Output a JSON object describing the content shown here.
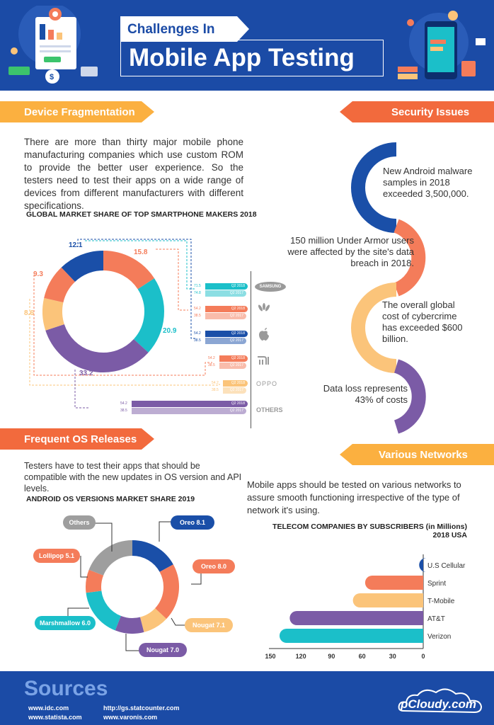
{
  "header": {
    "title_small": "Challenges In",
    "title_large": "Mobile App Testing"
  },
  "device_fragmentation": {
    "heading": "Device Fragmentation",
    "body": "There are more than thirty major mobile phone manufacturing companies which use custom ROM to provide the better user experience. So the testers need to test their apps on a wide range of devices from different manufacturers with different specifications.",
    "chart_title": "GLOBAL MARKET SHARE OF TOP SMARTPHONE MAKERS 2018"
  },
  "security": {
    "heading": "Security Issues",
    "items": [
      "New Android malware samples in 2018 exceeded 3,500,000.",
      "150 million Under Armor users were affected by the site's data breach in 2018.",
      "The overall global cost of cybercrime has exceeded $600 billion.",
      "Data loss represents 43% of costs"
    ]
  },
  "os_releases": {
    "heading": "Frequent OS Releases",
    "body": "Testers have to test their apps that should be compatible with the new updates in OS version and API levels.",
    "chart_title": "ANDROID OS VERSIONS MARKET SHARE 2019"
  },
  "networks": {
    "heading": "Various Networks",
    "body": "Mobile apps should be tested on various networks to assure smooth functioning irrespective of the type of network it's using.",
    "chart_title_line1": "TELECOM COMPANIES BY SUBSCRIBERS (in Millions)",
    "chart_title_line2": "2018 USA"
  },
  "sources": {
    "heading": "Sources",
    "links": [
      "www.idc.com",
      "www.statista.com",
      "http://gs.statcounter.com",
      "www.varonis.com"
    ]
  },
  "brand_logo": "pCloudy.com",
  "chart_data": [
    {
      "type": "pie",
      "title": "GLOBAL MARKET SHARE OF TOP SMARTPHONE MAKERS 2018",
      "donut_labels": [
        {
          "label": "12.1",
          "color": "#1a4fa8"
        },
        {
          "label": "15.8",
          "color": "#f47c5a"
        },
        {
          "label": "20.9",
          "color": "#1bbfc9"
        },
        {
          "label": "33.2",
          "color": "#7b5ba6"
        },
        {
          "label": "8.6",
          "color": "#fbc47a"
        },
        {
          "label": "9.3",
          "color": "#f47c5a"
        }
      ],
      "slices": [
        {
          "value": 15.8,
          "color": "#f47c5a"
        },
        {
          "value": 20.9,
          "color": "#1bbfc9"
        },
        {
          "value": 33.2,
          "color": "#7b5ba6"
        },
        {
          "value": 8.6,
          "color": "#fbc47a"
        },
        {
          "value": 9.3,
          "color": "#f47c5a"
        },
        {
          "value": 12.1,
          "color": "#1a4fa8"
        }
      ],
      "brands": [
        {
          "name": "SAMSUNG",
          "color": "#1bbfc9",
          "v2018": "71.5",
          "v2017": "74.8",
          "l2018": "Q2 2018",
          "l2017": "Q2 2017"
        },
        {
          "name": "HUAWEI",
          "color": "#f47c5a",
          "v2018": "54.2",
          "v2017": "38.5",
          "l2018": "Q2 2018",
          "l2017": "Q2 2017"
        },
        {
          "name": "APPLE",
          "color": "#1a4fa8",
          "v2018": "54.2",
          "v2017": "38.5",
          "l2018": "Q2 2018",
          "l2017": "Q2 2017"
        },
        {
          "name": "MI",
          "color": "#f47c5a",
          "v2018": "54.2",
          "v2017": "38.5",
          "l2018": "Q2 2018",
          "l2017": "Q2 2017"
        },
        {
          "name": "OPPO",
          "color": "#fbc47a",
          "v2018": "54.2",
          "v2017": "38.5",
          "l2018": "Q2 2018",
          "l2017": "Q2 2017"
        },
        {
          "name": "OTHERS",
          "color": "#7b5ba6",
          "v2018": "54.2",
          "v2017": "38.5",
          "l2018": "Q2 2018",
          "l2017": "Q2 2017"
        }
      ]
    },
    {
      "type": "pie",
      "title": "ANDROID OS VERSIONS MARKET SHARE 2019",
      "slices": [
        {
          "name": "Oreo 8.1",
          "value": 17,
          "color": "#1a4fa8"
        },
        {
          "name": "Oreo 8.0",
          "value": 20,
          "color": "#f47c5a"
        },
        {
          "name": "Nougat 7.1",
          "value": 9,
          "color": "#fbc47a"
        },
        {
          "name": "Nougat 7.0",
          "value": 10,
          "color": "#7b5ba6"
        },
        {
          "name": "Marshmallow 6.0",
          "value": 17,
          "color": "#1bbfc9"
        },
        {
          "name": "Lollipop 5.1",
          "value": 8,
          "color": "#f47c5a"
        },
        {
          "name": "Others",
          "value": 19,
          "color": "#9e9e9e"
        }
      ]
    },
    {
      "type": "bar",
      "title": "TELECOM COMPANIES BY SUBSCRIBERS (in Millions) 2018 USA",
      "categories": [
        "U.S Cellular",
        "Sprint",
        "T-Mobile",
        "AT&T",
        "Verizon"
      ],
      "values": [
        4,
        57,
        69,
        131,
        141
      ],
      "colors": [
        "#1a4fa8",
        "#f47c5a",
        "#fbc47a",
        "#7b5ba6",
        "#1bbfc9"
      ],
      "xlim": [
        150,
        0
      ],
      "ticks": [
        "150",
        "120",
        "90",
        "60",
        "30",
        "0"
      ]
    }
  ]
}
